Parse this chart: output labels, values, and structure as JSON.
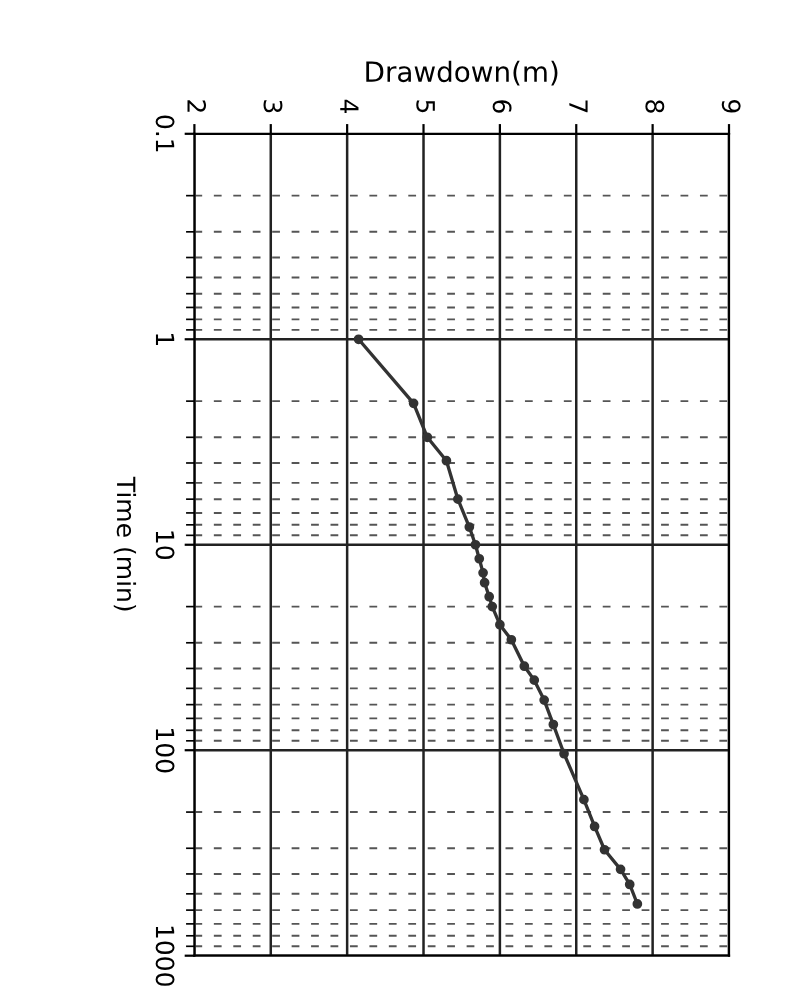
{
  "chart_data": {
    "type": "line",
    "xlabel": "Drawdown(m)",
    "ylabel": "Time (min)",
    "log": "y",
    "xlim": [
      2,
      9
    ],
    "xticks": [
      2,
      3,
      4,
      5,
      6,
      7,
      8,
      9
    ],
    "ylim": [
      1000,
      0.1
    ],
    "yticks": [
      0.1,
      1,
      10,
      100,
      1000
    ],
    "grid": true,
    "marker": "circle",
    "line_style": "solid",
    "legend": false,
    "series": [
      {
        "color": "#333333",
        "x": [
          4.15,
          4.87,
          5.05,
          5.3,
          5.45,
          5.6,
          5.68,
          5.73,
          5.78,
          5.8,
          5.86,
          5.9,
          6.0,
          6.15,
          6.32,
          6.45,
          6.58,
          6.7,
          6.84,
          7.1,
          7.24,
          7.37,
          7.58,
          7.7,
          7.8
        ],
        "values": [
          1,
          2.05,
          3.0,
          3.9,
          6.0,
          8.2,
          10,
          11.7,
          13.7,
          15.3,
          17.9,
          20,
          24.5,
          29,
          39,
          45.6,
          57,
          75,
          104,
          174,
          235,
          305,
          380,
          450,
          560
        ]
      }
    ]
  }
}
